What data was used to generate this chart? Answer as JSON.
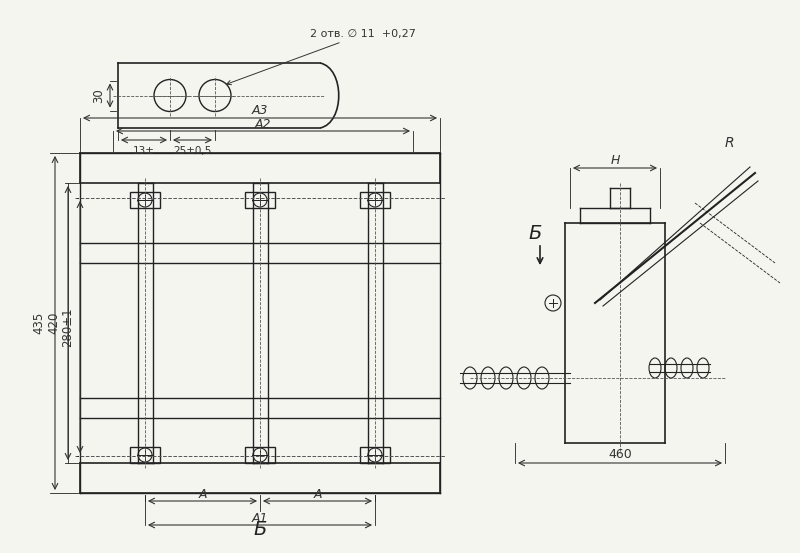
{
  "bg_color": "#f5f5f0",
  "line_color": "#222222",
  "dim_color": "#333333",
  "centerline_color": "#555555",
  "title": "",
  "labels": {
    "A3": "А3",
    "A2": "А2",
    "A1": "А1",
    "A": "А",
    "B_label": "Б",
    "H": "Н",
    "R": "R",
    "dim_435": "435",
    "dim_420": "420",
    "dim_280": "280±1",
    "dim_460": "460",
    "dim_30": "30",
    "dim_13": "13±",
    "dim_25": "25±0,5",
    "dim_holes": "2 отв. ∅ 11  +0,27"
  }
}
